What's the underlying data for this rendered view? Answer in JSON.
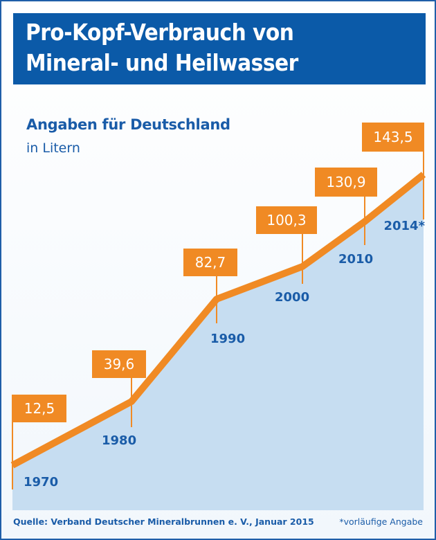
{
  "title_line1": "Pro-Kopf-Verbrauch von",
  "title_line2": "Mineral- und Heilwasser",
  "subtitle": "Angaben für Deutschland",
  "unit": "in Litern",
  "source": "Quelle: Verband Deutscher Mineralbrunnen e. V., Januar 2015",
  "footnote": "*vorläufige Angabe",
  "colors": {
    "title_bg": "#0b5aa8",
    "line": "#f08a24",
    "area": "#c6ddf1",
    "text": "#1a5ca8"
  },
  "chart_data": {
    "type": "area",
    "title": "Pro-Kopf-Verbrauch von Mineral- und Heilwasser",
    "ylabel": "in Litern",
    "categories": [
      "1970",
      "1980",
      "1990",
      "2000",
      "2010",
      "2014*"
    ],
    "value_labels": [
      "12,5",
      "39,6",
      "82,7",
      "100,3",
      "130,9",
      "143,5"
    ],
    "values": [
      12.5,
      39.6,
      82.7,
      100.3,
      130.9,
      143.5
    ],
    "grid": false
  }
}
